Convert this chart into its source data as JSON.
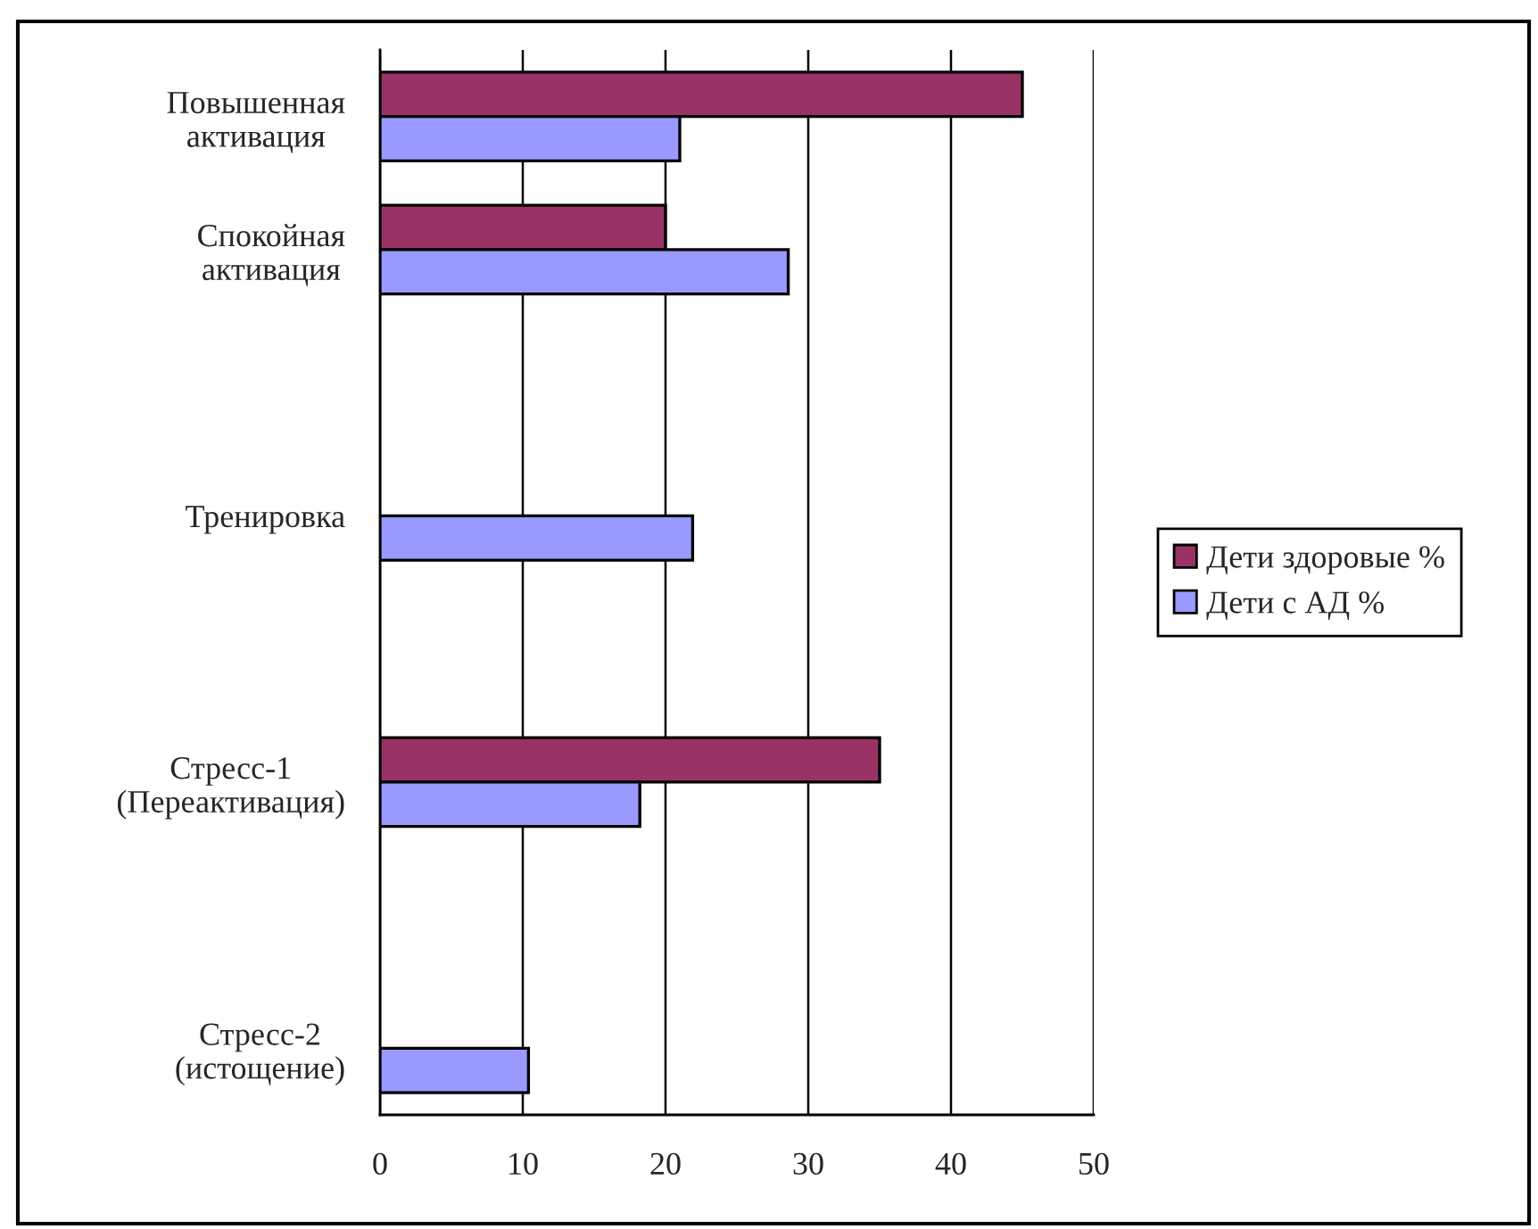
{
  "chart_data": {
    "type": "bar",
    "orientation": "horizontal",
    "categories": [
      "Повышенная\nактивация",
      "Спокойная\nактивация",
      null,
      "Тренировка",
      null,
      "Стресс-1\n(Переактивация)",
      null,
      "Стресс-2\n(истощение)"
    ],
    "series": [
      {
        "name": "Дети здоровые %",
        "color": "#993366",
        "values": [
          45,
          20,
          null,
          null,
          null,
          35,
          null,
          null
        ]
      },
      {
        "name": "Дети с АД %",
        "color": "#9999ff",
        "values": [
          21,
          28.6,
          null,
          21.9,
          null,
          18.2,
          null,
          10.4
        ]
      }
    ],
    "xlim": [
      0,
      50
    ],
    "xticks": [
      0,
      10,
      20,
      30,
      40,
      50
    ],
    "grid": "x",
    "legend": "right"
  }
}
